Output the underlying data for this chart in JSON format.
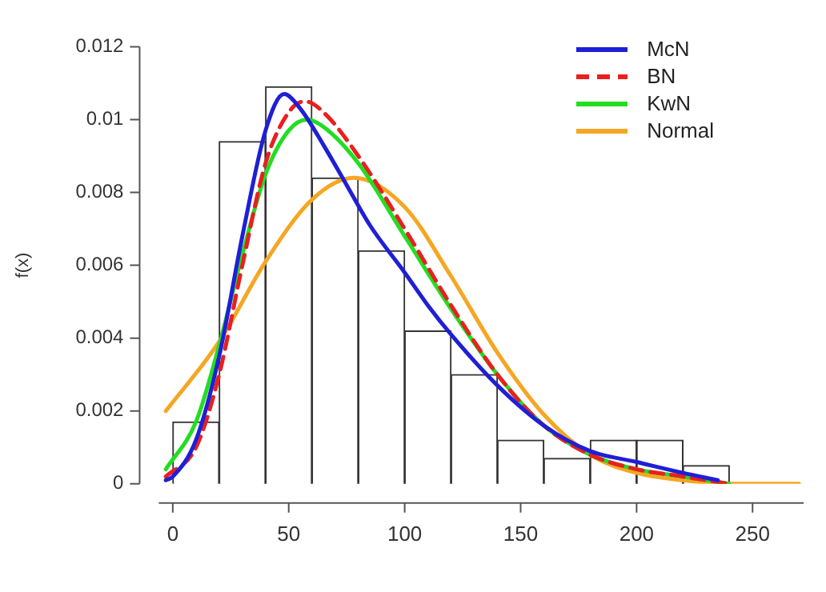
{
  "chart_data": {
    "type": "histogram",
    "ylabel": "f(x)",
    "bins": [
      0,
      20,
      40,
      60,
      80,
      100,
      120,
      140,
      160,
      180,
      200,
      220,
      240
    ],
    "values": [
      0.0017,
      0.0094,
      0.0109,
      0.0084,
      0.0064,
      0.0042,
      0.003,
      0.0012,
      0.0007,
      0.0012,
      0.0012,
      0.0005
    ],
    "color": "#ffffff",
    "series": [
      {
        "name": "McN",
        "type": "line",
        "color": "#1f1fd6",
        "line_style": "solid",
        "x": [
          -3,
          0,
          10,
          20,
          30,
          40,
          48,
          55,
          65,
          75,
          85,
          100,
          110,
          120,
          140,
          160,
          180,
          200,
          220,
          235
        ],
        "values": [
          0.0001,
          0.0002,
          0.0012,
          0.0035,
          0.0068,
          0.0097,
          0.0107,
          0.0103,
          0.0093,
          0.0082,
          0.0071,
          0.0058,
          0.0049,
          0.0041,
          0.0027,
          0.0016,
          0.0009,
          0.0006,
          0.0003,
          0.0001
        ]
      },
      {
        "name": "BN",
        "type": "line",
        "color": "#e82020",
        "line_style": "dashed",
        "x": [
          -3,
          10,
          20,
          30,
          40,
          50,
          57,
          65,
          80,
          100,
          120,
          140,
          160,
          180,
          200,
          220,
          240
        ],
        "values": [
          0.0002,
          0.001,
          0.003,
          0.006,
          0.0088,
          0.0102,
          0.0105,
          0.0102,
          0.009,
          0.007,
          0.0049,
          0.003,
          0.0016,
          0.0008,
          0.0004,
          0.0002,
          0
        ]
      },
      {
        "name": "KwN",
        "type": "line",
        "color": "#22dd22",
        "line_style": "solid",
        "x": [
          -3,
          10,
          20,
          30,
          40,
          50,
          58,
          65,
          80,
          100,
          120,
          140,
          160,
          180,
          200,
          220,
          240
        ],
        "values": [
          0.0004,
          0.0017,
          0.0038,
          0.0063,
          0.0085,
          0.0097,
          0.01,
          0.0098,
          0.0088,
          0.0068,
          0.0048,
          0.003,
          0.0016,
          0.0008,
          0.0004,
          0.0002,
          0
        ]
      },
      {
        "name": "Normal",
        "type": "line",
        "color": "#f5a623",
        "line_style": "solid",
        "x": [
          -3,
          20,
          40,
          60,
          78,
          100,
          120,
          140,
          160,
          180,
          200,
          220,
          240,
          270
        ],
        "values": [
          0.002,
          0.0039,
          0.0061,
          0.0078,
          0.0084,
          0.0076,
          0.0057,
          0.0036,
          0.0019,
          0.0008,
          0.0003,
          0.0001,
          0,
          0
        ]
      }
    ],
    "xlim": [
      -6,
      272
    ],
    "xticks": [
      0,
      50,
      100,
      150,
      200,
      250
    ],
    "ylim": [
      0,
      0.012
    ],
    "yticks": [
      0,
      0.002,
      0.004,
      0.006,
      0.008,
      0.01,
      0.012
    ],
    "grid": false,
    "legend": "top right"
  }
}
